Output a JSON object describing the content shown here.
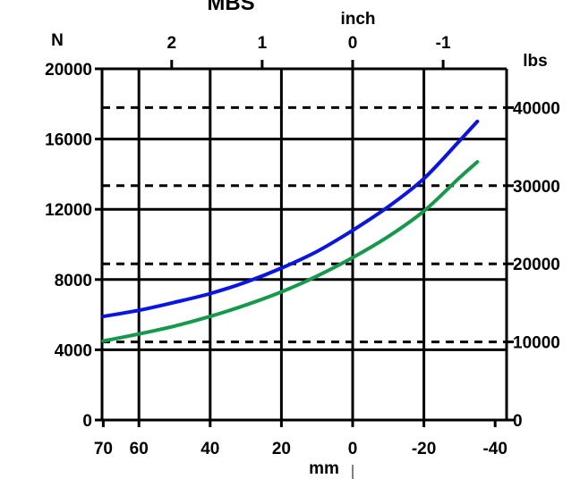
{
  "chart_data": {
    "type": "line",
    "title": "MBS",
    "x_axis_bottom": {
      "label": "mm",
      "range": [
        70,
        -45
      ],
      "reversed": true,
      "ticks": [
        70,
        60,
        40,
        20,
        0,
        -20,
        -40
      ],
      "tick_labels": [
        "70",
        "60",
        "40",
        "20",
        "0",
        "-20",
        "-40"
      ]
    },
    "x_axis_top": {
      "label": "inch",
      "ticks": [
        2,
        1,
        0,
        -1
      ],
      "tick_labels": [
        "2",
        "1",
        "0",
        "-1"
      ]
    },
    "y_axis_left": {
      "label": "N",
      "range": [
        0,
        20000
      ],
      "ticks": [
        0,
        4000,
        8000,
        12000,
        16000,
        20000
      ],
      "tick_labels": [
        "0",
        "4000",
        "8000",
        "12000",
        "16000",
        "20000"
      ]
    },
    "y_axis_right": {
      "label": "lbs",
      "ticks": [
        0,
        10000,
        20000,
        30000,
        40000
      ],
      "tick_labels": [
        "0",
        "10000",
        "20000",
        "30000",
        "40000"
      ]
    },
    "grid": {
      "solid_horizontal_at_N": [
        4000,
        8000,
        12000,
        16000
      ],
      "solid_vertical_at_mm": [
        60,
        40,
        20,
        0,
        -20
      ],
      "dashed_horizontal_at_lbs": [
        10000,
        20000,
        30000,
        40000
      ]
    },
    "series": [
      {
        "color": "#0a14e6",
        "x": [
          70,
          60,
          50,
          40,
          30,
          20,
          10,
          0,
          -10,
          -20,
          -30,
          -35
        ],
        "y": [
          5900,
          6250,
          6700,
          7200,
          7850,
          8650,
          9600,
          10800,
          12150,
          13750,
          15900,
          17000
        ]
      },
      {
        "color": "#159a4c",
        "x": [
          70,
          60,
          50,
          40,
          30,
          20,
          10,
          0,
          -10,
          -20,
          -30,
          -35
        ],
        "y": [
          4500,
          4900,
          5350,
          5900,
          6550,
          7300,
          8200,
          9250,
          10450,
          11900,
          13800,
          14700
        ]
      }
    ]
  }
}
